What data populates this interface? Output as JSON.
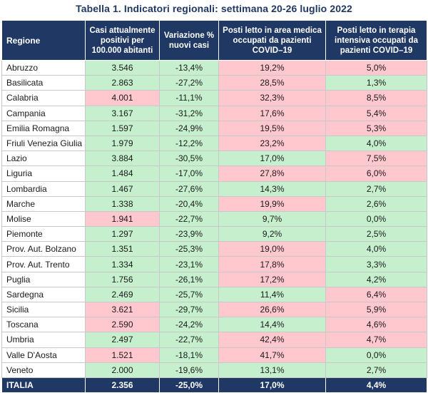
{
  "title": "Tabella 1. Indicatori regionali: settimana 20-26 luglio 2022",
  "headers": [
    "Regione",
    "Casi attualmente positivi per 100.000 abitanti",
    "Variazione % nuovi casi",
    "Posti letto in area medica occupati da pazienti COVID–19",
    "Posti letto in terapia intensiva occupati da pazienti COVID–19"
  ],
  "colors": {
    "header_bg": "#1f3864",
    "good": "#c6efce",
    "bad": "#ffc7ce"
  },
  "rows": [
    {
      "region": "Abruzzo",
      "casi": "3.546",
      "var": "-13,4%",
      "medica": "19,2%",
      "intensiva": "5,0%",
      "s": [
        "g",
        "g",
        "r",
        "r"
      ]
    },
    {
      "region": "Basilicata",
      "casi": "2.863",
      "var": "-27,2%",
      "medica": "28,5%",
      "intensiva": "1,3%",
      "s": [
        "g",
        "g",
        "r",
        "g"
      ]
    },
    {
      "region": "Calabria",
      "casi": "4.001",
      "var": "-11,1%",
      "medica": "32,3%",
      "intensiva": "8,5%",
      "s": [
        "r",
        "g",
        "r",
        "r"
      ]
    },
    {
      "region": "Campania",
      "casi": "3.167",
      "var": "-31,2%",
      "medica": "17,6%",
      "intensiva": "5,4%",
      "s": [
        "g",
        "g",
        "r",
        "r"
      ]
    },
    {
      "region": "Emilia Romagna",
      "casi": "1.597",
      "var": "-24,9%",
      "medica": "19,5%",
      "intensiva": "5,3%",
      "s": [
        "g",
        "g",
        "r",
        "r"
      ]
    },
    {
      "region": "Friuli Venezia Giulia",
      "casi": "1.979",
      "var": "-12,2%",
      "medica": "23,2%",
      "intensiva": "4,0%",
      "s": [
        "g",
        "g",
        "r",
        "g"
      ]
    },
    {
      "region": "Lazio",
      "casi": "3.884",
      "var": "-30,5%",
      "medica": "17,0%",
      "intensiva": "7,5%",
      "s": [
        "g",
        "g",
        "g",
        "r"
      ]
    },
    {
      "region": "Liguria",
      "casi": "1.484",
      "var": "-17,0%",
      "medica": "27,8%",
      "intensiva": "6,0%",
      "s": [
        "g",
        "g",
        "r",
        "r"
      ]
    },
    {
      "region": "Lombardia",
      "casi": "1.467",
      "var": "-27,6%",
      "medica": "14,3%",
      "intensiva": "2,7%",
      "s": [
        "g",
        "g",
        "g",
        "g"
      ]
    },
    {
      "region": "Marche",
      "casi": "1.338",
      "var": "-20,4%",
      "medica": "19,9%",
      "intensiva": "2,6%",
      "s": [
        "g",
        "g",
        "r",
        "g"
      ]
    },
    {
      "region": "Molise",
      "casi": "1.941",
      "var": "-22,7%",
      "medica": "9,7%",
      "intensiva": "0,0%",
      "s": [
        "r",
        "g",
        "g",
        "g"
      ]
    },
    {
      "region": "Piemonte",
      "casi": "1.297",
      "var": "-23,9%",
      "medica": "9,2%",
      "intensiva": "2,5%",
      "s": [
        "g",
        "g",
        "g",
        "g"
      ]
    },
    {
      "region": "Prov. Aut. Bolzano",
      "casi": "1.351",
      "var": "-25,3%",
      "medica": "19,0%",
      "intensiva": "4,0%",
      "s": [
        "g",
        "g",
        "r",
        "g"
      ]
    },
    {
      "region": "Prov. Aut. Trento",
      "casi": "1.334",
      "var": "-23,1%",
      "medica": "17,8%",
      "intensiva": "3,3%",
      "s": [
        "g",
        "g",
        "r",
        "g"
      ]
    },
    {
      "region": "Puglia",
      "casi": "1.756",
      "var": "-26,1%",
      "medica": "17,2%",
      "intensiva": "4,2%",
      "s": [
        "g",
        "g",
        "r",
        "g"
      ]
    },
    {
      "region": "Sardegna",
      "casi": "2.469",
      "var": "-25,7%",
      "medica": "11,4%",
      "intensiva": "6,4%",
      "s": [
        "g",
        "g",
        "g",
        "r"
      ]
    },
    {
      "region": "Sicilia",
      "casi": "3.621",
      "var": "-29,7%",
      "medica": "26,6%",
      "intensiva": "5,9%",
      "s": [
        "r",
        "g",
        "r",
        "r"
      ]
    },
    {
      "region": "Toscana",
      "casi": "2.590",
      "var": "-24,2%",
      "medica": "14,4%",
      "intensiva": "4,6%",
      "s": [
        "r",
        "g",
        "g",
        "r"
      ]
    },
    {
      "region": "Umbria",
      "casi": "2.497",
      "var": "-22,7%",
      "medica": "42,4%",
      "intensiva": "4,7%",
      "s": [
        "g",
        "g",
        "r",
        "r"
      ]
    },
    {
      "region": "Valle D'Aosta",
      "casi": "1.521",
      "var": "-18,1%",
      "medica": "41,7%",
      "intensiva": "0,0%",
      "s": [
        "r",
        "g",
        "r",
        "g"
      ]
    },
    {
      "region": "Veneto",
      "casi": "2.000",
      "var": "-19,6%",
      "medica": "13,1%",
      "intensiva": "2,7%",
      "s": [
        "g",
        "g",
        "g",
        "g"
      ]
    }
  ],
  "total": {
    "region": "ITALIA",
    "casi": "2.356",
    "var": "-25,0%",
    "medica": "17,0%",
    "intensiva": "4,4%"
  }
}
